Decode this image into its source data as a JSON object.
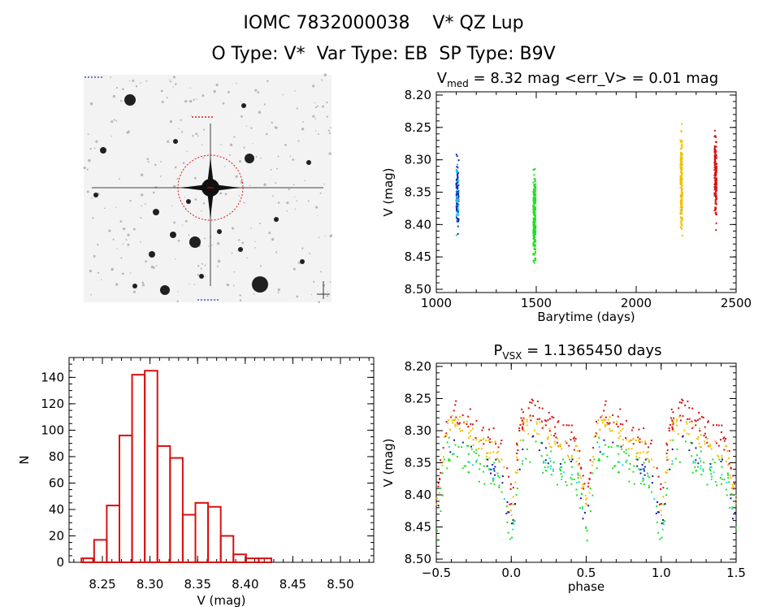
{
  "header": {
    "title": "IOMC 7832000038    V* QZ Lup",
    "subtitle": "O Type: V*  Var Type: EB  SP Type: B9V"
  },
  "colors": {
    "blue": "#2030c8",
    "cyan": "#20d8e8",
    "green": "#20e020",
    "yellow": "#f0c000",
    "red": "#d81010",
    "navy": "#1a1aa0",
    "hist": "#d81010",
    "circle": "#e01010"
  },
  "chart_data": [
    {
      "type": "image",
      "name": "finding-chart",
      "description_tags": [
        "star-field",
        "target-circle"
      ]
    },
    {
      "type": "scatter",
      "title_main": "V",
      "title_sub": "med",
      "title_rest": " = 8.32 mag <err_V> = 0.01 mag",
      "xlabel": "Barytime (days)",
      "ylabel": "V (mag)",
      "xlim": [
        1000,
        2500
      ],
      "ylim": [
        8.505,
        8.195
      ],
      "xticks": [
        1000,
        1500,
        2000,
        2500
      ],
      "yticks": [
        8.2,
        8.25,
        8.3,
        8.35,
        8.4,
        8.45,
        8.5
      ],
      "xtick_labels": [
        "1000",
        "1500",
        "2000",
        "2500"
      ],
      "ytick_labels": [
        "8.20",
        "8.25",
        "8.30",
        "8.35",
        "8.40",
        "8.45",
        "8.50"
      ],
      "series": [
        {
          "color": "blue",
          "x_range": [
            1100,
            1112
          ],
          "y_range": [
            8.285,
            8.42
          ]
        },
        {
          "color": "green",
          "x_range": [
            1485,
            1497
          ],
          "y_range": [
            8.285,
            8.495
          ]
        },
        {
          "color": "yellow",
          "x_range": [
            2221,
            2231
          ],
          "y_range": [
            8.23,
            8.435
          ]
        },
        {
          "color": "red",
          "x_range": [
            2392,
            2402
          ],
          "y_range": [
            8.24,
            8.42
          ]
        }
      ]
    },
    {
      "type": "bar",
      "xlabel": "V (mag)",
      "ylabel": "N",
      "xlim": [
        8.215,
        8.535
      ],
      "ylim": [
        0,
        155
      ],
      "bin_width": 0.0133,
      "bin_start": 8.228,
      "values": [
        3,
        17,
        43,
        96,
        142,
        145,
        88,
        79,
        36,
        45,
        42,
        20,
        6,
        3,
        3,
        0
      ],
      "xticks": [
        8.25,
        8.3,
        8.35,
        8.4,
        8.45,
        8.5
      ],
      "yticks": [
        0,
        20,
        40,
        60,
        80,
        100,
        120,
        140
      ],
      "xtick_labels": [
        "8.25",
        "8.30",
        "8.35",
        "8.40",
        "8.45",
        "8.50"
      ],
      "ytick_labels": [
        "0",
        "20",
        "40",
        "60",
        "80",
        "100",
        "120",
        "140"
      ]
    },
    {
      "type": "scatter",
      "title_main": "P",
      "title_sub": "VSX",
      "title_rest": " = 1.1365450 days",
      "period_days": 1.136545,
      "xlabel": "phase",
      "ylabel": "V (mag)",
      "xlim": [
        -0.5,
        1.5
      ],
      "ylim": [
        8.505,
        8.195
      ],
      "xticks": [
        -0.5,
        0.0,
        0.5,
        1.0,
        1.5
      ],
      "yticks": [
        8.2,
        8.25,
        8.3,
        8.35,
        8.4,
        8.45,
        8.5
      ],
      "xtick_labels": [
        "−0.5",
        "0.0",
        "0.5",
        "1.0",
        "1.5"
      ],
      "ytick_labels": [
        "8.20",
        "8.25",
        "8.30",
        "8.35",
        "8.40",
        "8.45",
        "8.50"
      ],
      "light_curve": {
        "baseline_mag": 8.31,
        "primary_min": {
          "phase": 0.0,
          "mag": 8.42
        },
        "secondary_min": {
          "phase": 0.5,
          "mag": 8.41
        }
      }
    }
  ]
}
